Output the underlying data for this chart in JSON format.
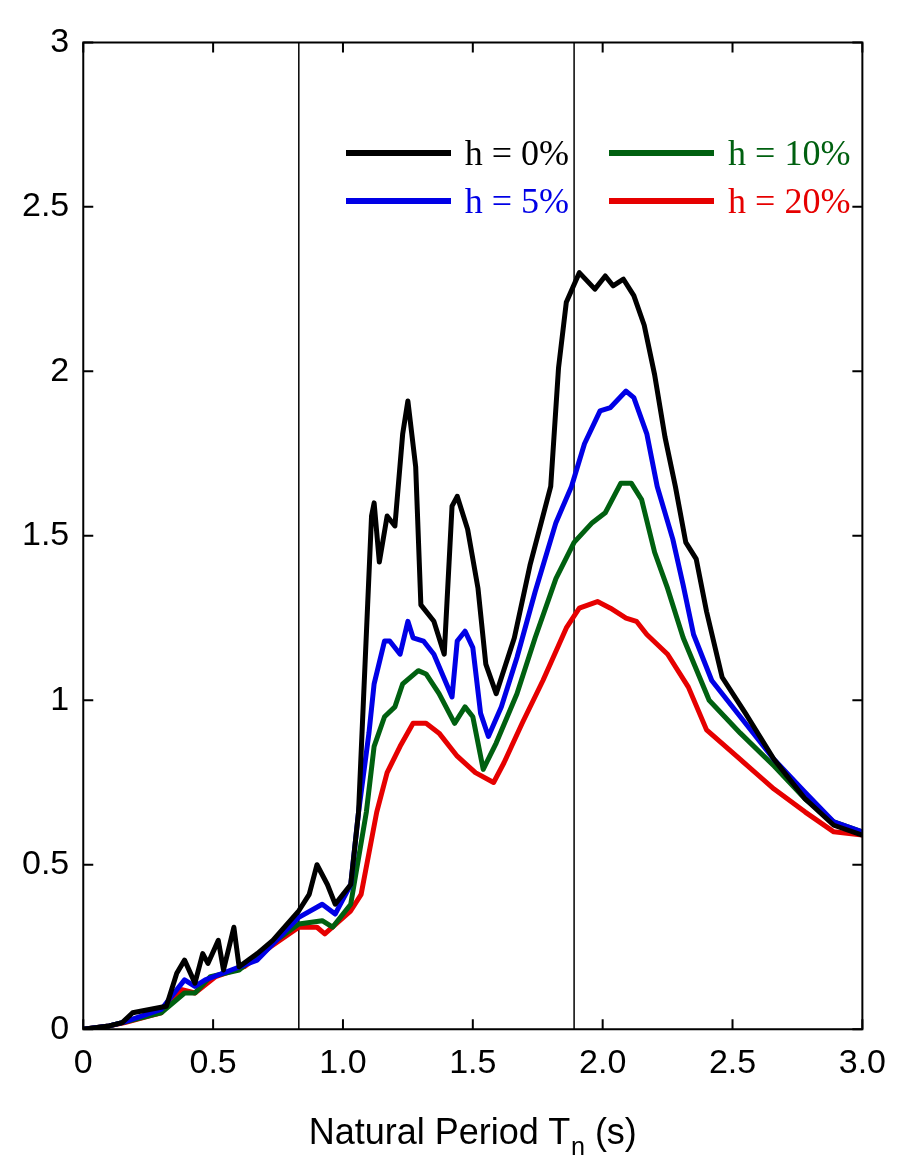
{
  "chart_data": {
    "type": "line",
    "xlabel": "Natural Period T$_{n}$ (s)",
    "xlim": [
      0,
      3
    ],
    "xticks": [
      0,
      0.5,
      {
        "value": 1,
        "label": "1.0"
      },
      1.5,
      {
        "value": 2,
        "label": "2.0"
      },
      2.5,
      {
        "value": 3,
        "label": "3.0"
      }
    ],
    "ylim": [
      0,
      3
    ],
    "yticks": [
      0,
      0.5,
      1,
      1.5,
      2,
      2.5,
      3
    ],
    "grid": false,
    "legend": "top right",
    "marker": "none",
    "line_style": "solid",
    "ref_lines": [
      {
        "axis": "x",
        "value": 0.83,
        "color": "#000000"
      },
      {
        "axis": "x",
        "value": 1.89,
        "color": "#000000"
      }
    ],
    "series": [
      {
        "name": "h = 0%",
        "color": "#000000",
        "x": [
          0,
          0.1,
          0.15,
          0.19,
          0.32,
          0.36,
          0.39,
          0.43,
          0.46,
          0.48,
          0.52,
          0.54,
          0.58,
          0.6,
          0.67,
          0.73,
          0.83,
          0.87,
          0.9,
          0.94,
          0.97,
          1.03,
          1.06,
          1.11,
          1.12,
          1.14,
          1.17,
          1.2,
          1.23,
          1.25,
          1.28,
          1.3,
          1.35,
          1.39,
          1.42,
          1.44,
          1.48,
          1.52,
          1.55,
          1.59,
          1.66,
          1.72,
          1.8,
          1.83,
          1.86,
          1.91,
          1.97,
          2.01,
          2.04,
          2.08,
          2.12,
          2.16,
          2.2,
          2.24,
          2.28,
          2.32,
          2.36,
          2.4,
          2.46,
          2.55,
          2.66,
          2.78,
          2.89,
          3.0
        ],
        "values": [
          0,
          0.01,
          0.02,
          0.05,
          0.07,
          0.17,
          0.21,
          0.14,
          0.23,
          0.2,
          0.27,
          0.18,
          0.31,
          0.19,
          0.23,
          0.27,
          0.36,
          0.41,
          0.5,
          0.44,
          0.38,
          0.44,
          0.66,
          1.56,
          1.6,
          1.42,
          1.56,
          1.53,
          1.81,
          1.91,
          1.71,
          1.29,
          1.24,
          1.14,
          1.59,
          1.62,
          1.52,
          1.34,
          1.11,
          1.02,
          1.19,
          1.41,
          1.65,
          2.01,
          2.21,
          2.3,
          2.25,
          2.29,
          2.26,
          2.28,
          2.23,
          2.14,
          1.99,
          1.8,
          1.65,
          1.48,
          1.43,
          1.27,
          1.07,
          0.96,
          0.82,
          0.7,
          0.62,
          0.59
        ]
      },
      {
        "name": "h = 5%",
        "color": "#0000e6",
        "x": [
          0,
          0.1,
          0.15,
          0.3,
          0.39,
          0.43,
          0.47,
          0.57,
          0.67,
          0.83,
          0.92,
          0.97,
          1.03,
          1.06,
          1.1,
          1.12,
          1.16,
          1.18,
          1.22,
          1.25,
          1.27,
          1.31,
          1.35,
          1.42,
          1.44,
          1.47,
          1.5,
          1.53,
          1.56,
          1.61,
          1.67,
          1.74,
          1.82,
          1.88,
          1.93,
          1.99,
          2.03,
          2.09,
          2.12,
          2.17,
          2.21,
          2.27,
          2.31,
          2.35,
          2.42,
          2.53,
          2.66,
          2.78,
          2.89,
          3.0
        ],
        "values": [
          0,
          0.01,
          0.02,
          0.06,
          0.15,
          0.13,
          0.15,
          0.18,
          0.21,
          0.34,
          0.38,
          0.35,
          0.44,
          0.66,
          0.9,
          1.05,
          1.18,
          1.18,
          1.14,
          1.24,
          1.19,
          1.18,
          1.14,
          1.01,
          1.18,
          1.21,
          1.16,
          0.96,
          0.89,
          0.98,
          1.13,
          1.33,
          1.54,
          1.65,
          1.78,
          1.88,
          1.89,
          1.94,
          1.92,
          1.81,
          1.65,
          1.49,
          1.35,
          1.2,
          1.06,
          0.95,
          0.82,
          0.72,
          0.63,
          0.6
        ]
      },
      {
        "name": "h = 10%",
        "color": "#006010",
        "x": [
          0,
          0.1,
          0.15,
          0.3,
          0.39,
          0.43,
          0.49,
          0.6,
          0.69,
          0.83,
          0.92,
          0.96,
          1.03,
          1.09,
          1.12,
          1.16,
          1.2,
          1.23,
          1.29,
          1.32,
          1.37,
          1.43,
          1.47,
          1.5,
          1.54,
          1.59,
          1.67,
          1.74,
          1.82,
          1.89,
          1.96,
          2.01,
          2.07,
          2.11,
          2.15,
          2.2,
          2.25,
          2.31,
          2.41,
          2.53,
          2.66,
          2.78,
          2.89,
          3.0
        ],
        "values": [
          0,
          0.01,
          0.02,
          0.05,
          0.11,
          0.11,
          0.16,
          0.18,
          0.24,
          0.32,
          0.33,
          0.31,
          0.38,
          0.66,
          0.86,
          0.95,
          0.98,
          1.05,
          1.09,
          1.08,
          1.02,
          0.93,
          0.98,
          0.95,
          0.79,
          0.87,
          1.02,
          1.19,
          1.37,
          1.48,
          1.54,
          1.57,
          1.66,
          1.66,
          1.61,
          1.45,
          1.34,
          1.19,
          1.0,
          0.9,
          0.8,
          0.7,
          0.63,
          0.6
        ]
      },
      {
        "name": "h = 20%",
        "color": "#e60000",
        "x": [
          0,
          0.1,
          0.16,
          0.3,
          0.38,
          0.43,
          0.51,
          0.62,
          0.72,
          0.83,
          0.9,
          0.93,
          1.03,
          1.07,
          1.13,
          1.17,
          1.22,
          1.27,
          1.32,
          1.37,
          1.44,
          1.51,
          1.58,
          1.62,
          1.69,
          1.77,
          1.86,
          1.91,
          1.98,
          2.03,
          2.09,
          2.13,
          2.17,
          2.25,
          2.33,
          2.4,
          2.53,
          2.66,
          2.78,
          2.89,
          3.0
        ],
        "values": [
          0,
          0.01,
          0.02,
          0.05,
          0.12,
          0.11,
          0.16,
          0.19,
          0.25,
          0.31,
          0.31,
          0.29,
          0.36,
          0.41,
          0.66,
          0.78,
          0.86,
          0.93,
          0.93,
          0.9,
          0.83,
          0.78,
          0.75,
          0.81,
          0.93,
          1.06,
          1.22,
          1.28,
          1.3,
          1.28,
          1.25,
          1.24,
          1.2,
          1.14,
          1.04,
          0.91,
          0.82,
          0.73,
          0.66,
          0.6,
          0.59
        ]
      }
    ]
  }
}
